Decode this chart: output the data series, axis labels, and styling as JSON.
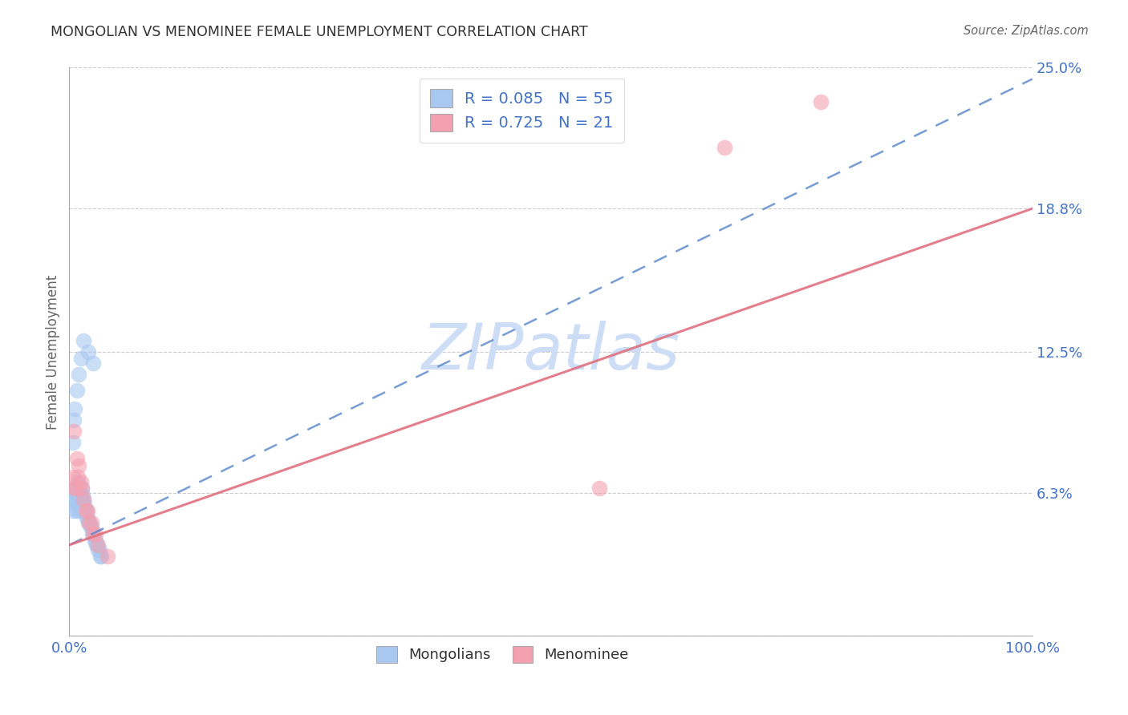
{
  "title": "MONGOLIAN VS MENOMINEE FEMALE UNEMPLOYMENT CORRELATION CHART",
  "source": "Source: ZipAtlas.com",
  "ylabel": "Female Unemployment",
  "xlim": [
    0.0,
    1.0
  ],
  "ylim": [
    0.0,
    0.25
  ],
  "ytick_vals": [
    0.0,
    0.063,
    0.125,
    0.188,
    0.25
  ],
  "ytick_labels": [
    "",
    "6.3%",
    "12.5%",
    "18.8%",
    "25.0%"
  ],
  "mongolian_R": 0.085,
  "mongolian_N": 55,
  "menominee_R": 0.725,
  "menominee_N": 21,
  "mongolian_color": "#a8c8f0",
  "menominee_color": "#f4a0b0",
  "mongolian_line_color": "#5585c8",
  "menominee_line_color": "#e07080",
  "watermark_color": "#ccddf5",
  "mongolian_x": [
    0.004,
    0.005,
    0.006,
    0.006,
    0.007,
    0.007,
    0.008,
    0.008,
    0.009,
    0.009,
    0.009,
    0.009,
    0.01,
    0.01,
    0.01,
    0.01,
    0.011,
    0.011,
    0.012,
    0.012,
    0.013,
    0.013,
    0.013,
    0.014,
    0.014,
    0.015,
    0.015,
    0.016,
    0.017,
    0.018,
    0.018,
    0.019,
    0.02,
    0.021,
    0.022,
    0.023,
    0.024,
    0.025,
    0.026,
    0.027,
    0.028,
    0.029,
    0.03,
    0.031,
    0.032,
    0.033,
    0.004,
    0.005,
    0.006,
    0.008,
    0.01,
    0.012,
    0.015,
    0.02,
    0.025
  ],
  "mongolian_y": [
    0.055,
    0.06,
    0.06,
    0.065,
    0.055,
    0.063,
    0.058,
    0.065,
    0.06,
    0.062,
    0.064,
    0.068,
    0.055,
    0.058,
    0.062,
    0.065,
    0.06,
    0.065,
    0.058,
    0.062,
    0.055,
    0.058,
    0.065,
    0.058,
    0.062,
    0.055,
    0.06,
    0.058,
    0.055,
    0.052,
    0.055,
    0.052,
    0.05,
    0.05,
    0.048,
    0.048,
    0.045,
    0.045,
    0.042,
    0.042,
    0.04,
    0.04,
    0.038,
    0.038,
    0.035,
    0.035,
    0.085,
    0.095,
    0.1,
    0.108,
    0.115,
    0.122,
    0.13,
    0.125,
    0.12
  ],
  "menominee_x": [
    0.004,
    0.005,
    0.006,
    0.007,
    0.008,
    0.009,
    0.01,
    0.012,
    0.013,
    0.015,
    0.017,
    0.019,
    0.021,
    0.023,
    0.025,
    0.027,
    0.03,
    0.04,
    0.55,
    0.68,
    0.78
  ],
  "menominee_y": [
    0.07,
    0.09,
    0.065,
    0.065,
    0.078,
    0.07,
    0.075,
    0.068,
    0.065,
    0.06,
    0.055,
    0.055,
    0.05,
    0.05,
    0.045,
    0.045,
    0.04,
    0.035,
    0.065,
    0.215,
    0.235
  ],
  "mongolian_line_x0": 0.0,
  "mongolian_line_y0": 0.04,
  "mongolian_line_x1": 1.0,
  "mongolian_line_y1": 0.245,
  "menominee_line_x0": 0.0,
  "menominee_line_y0": 0.04,
  "menominee_line_x1": 1.0,
  "menominee_line_y1": 0.188
}
